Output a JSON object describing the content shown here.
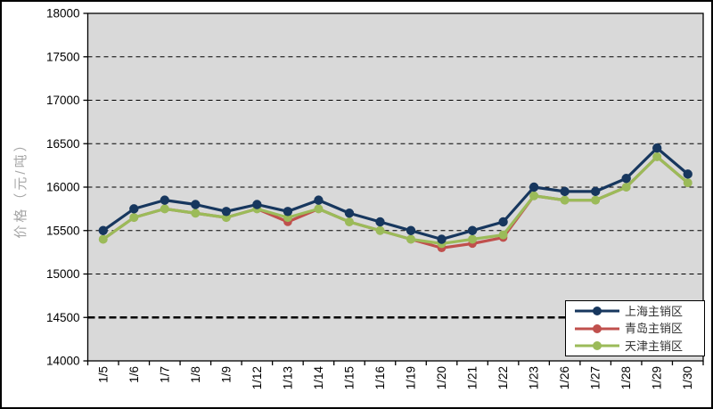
{
  "figure": {
    "background": "#ffffff",
    "border_color": "#000000"
  },
  "chart_data": {
    "type": "line",
    "title": "",
    "xlabel": "",
    "ylabel": "价格（元/吨）",
    "ylim": [
      14000,
      18000
    ],
    "ytick_step": 500,
    "bold_gridline": 14500,
    "grid": "horizontal-dashed",
    "plot_bg": "#d9d9d9",
    "gridline_color": "#000000",
    "legend_position": "bottom-right",
    "categories": [
      "1/5",
      "1/6",
      "1/7",
      "1/8",
      "1/9",
      "1/12",
      "1/13",
      "1/14",
      "1/15",
      "1/16",
      "1/19",
      "1/20",
      "1/21",
      "1/22",
      "1/23",
      "1/26",
      "1/27",
      "1/28",
      "1/29",
      "1/30"
    ],
    "series": [
      {
        "name": "上海主销区",
        "color": "#17375e",
        "values": [
          15500,
          15750,
          15850,
          15800,
          15720,
          15800,
          15720,
          15850,
          15700,
          15600,
          15500,
          15400,
          15500,
          15600,
          16000,
          15950,
          15950,
          16100,
          16450,
          16150
        ]
      },
      {
        "name": "青岛主销区",
        "color": "#c0504d",
        "values": [
          15400,
          15650,
          15750,
          15700,
          15650,
          15750,
          15600,
          15750,
          15600,
          15500,
          15400,
          15300,
          15350,
          15420,
          15900,
          15850,
          15850,
          16000,
          16350,
          16050
        ]
      },
      {
        "name": "天津主销区",
        "color": "#9bbb59",
        "values": [
          15400,
          15650,
          15750,
          15700,
          15650,
          15750,
          15650,
          15750,
          15600,
          15500,
          15400,
          15350,
          15400,
          15450,
          15900,
          15850,
          15850,
          16000,
          16350,
          16050
        ]
      }
    ]
  }
}
